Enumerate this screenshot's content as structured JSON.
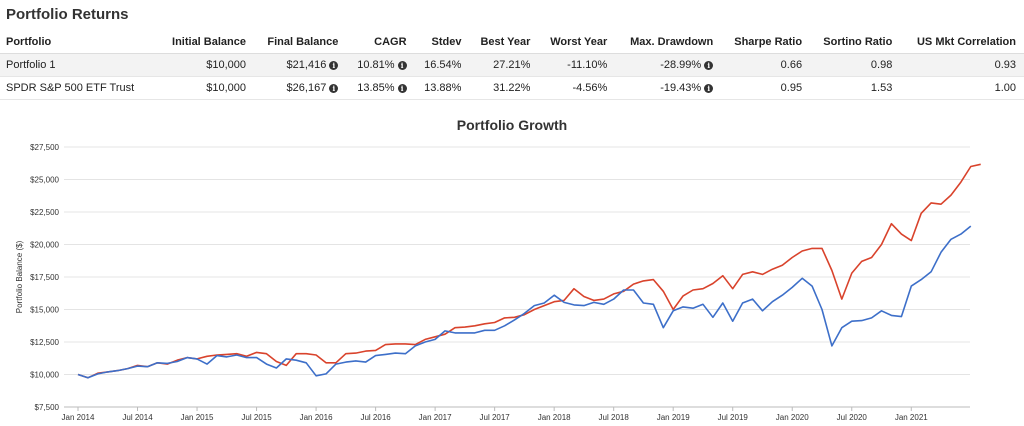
{
  "section_title": "Portfolio Returns",
  "table": {
    "headers": [
      "Portfolio",
      "Initial Balance",
      "Final Balance",
      "CAGR",
      "Stdev",
      "Best Year",
      "Worst Year",
      "Max. Drawdown",
      "Sharpe Ratio",
      "Sortino Ratio",
      "US Mkt Correlation"
    ],
    "rows": [
      {
        "portfolio": "Portfolio 1",
        "initial": "$10,000",
        "final": "$21,416",
        "cagr": "10.81%",
        "stdev": "16.54%",
        "best": "27.21%",
        "worst": "-11.10%",
        "drawdown": "-28.99%",
        "sharpe": "0.66",
        "sortino": "0.98",
        "corr": "0.93"
      },
      {
        "portfolio": "SPDR S&P 500 ETF Trust",
        "initial": "$10,000",
        "final": "$26,167",
        "cagr": "13.85%",
        "stdev": "13.88%",
        "best": "31.22%",
        "worst": "-4.56%",
        "drawdown": "-19.43%",
        "sharpe": "0.95",
        "sortino": "1.53",
        "corr": "1.00"
      }
    ],
    "info_icon": "info-circle-icon"
  },
  "chart_data": {
    "type": "line",
    "title": "Portfolio Growth",
    "xlabel": "",
    "ylabel": "Portfolio Balance ($)",
    "ylim": [
      7500,
      27500
    ],
    "yticks": [
      "$7,500",
      "$10,000",
      "$12,500",
      "$15,000",
      "$17,500",
      "$20,000",
      "$22,500",
      "$25,000",
      "$27,500"
    ],
    "xticks": [
      "Jan 2014",
      "Jul 2014",
      "Jan 2015",
      "Jul 2015",
      "Jan 2016",
      "Jul 2016",
      "Jan 2017",
      "Jul 2017",
      "Jan 2018",
      "Jul 2018",
      "Jan 2019",
      "Jul 2019",
      "Jan 2020",
      "Jul 2020",
      "Jan 2021"
    ],
    "x_start": "Jan 2014",
    "x_end": "Apr 2021",
    "grid": true,
    "series": [
      {
        "color": "#d9432c",
        "values": [
          10000,
          9750,
          10100,
          10200,
          10300,
          10450,
          10700,
          10600,
          10900,
          10800,
          11100,
          11300,
          11200,
          11400,
          11500,
          11550,
          11600,
          11400,
          11700,
          11600,
          11000,
          10700,
          11600,
          11600,
          11500,
          10900,
          10900,
          11600,
          11650,
          11800,
          11850,
          12300,
          12350,
          12350,
          12300,
          12700,
          12900,
          13100,
          13600,
          13650,
          13750,
          13900,
          14000,
          14350,
          14400,
          14600,
          15000,
          15300,
          15600,
          15700,
          16600,
          16000,
          15700,
          15800,
          16200,
          16400,
          16950,
          17200,
          17300,
          16400,
          15000,
          16050,
          16500,
          16600,
          17000,
          17600,
          16600,
          17700,
          17900,
          17700,
          18100,
          18400,
          19000,
          19500,
          19700,
          19700,
          18000,
          15800,
          17800,
          18700,
          19000,
          20000,
          21600,
          20800,
          20300,
          22400,
          23200,
          23100,
          23800,
          24800,
          26000,
          26167
        ]
      },
      {
        "color": "#3d6fc9",
        "values": [
          10000,
          9750,
          10050,
          10200,
          10300,
          10450,
          10650,
          10600,
          10900,
          10850,
          11000,
          11300,
          11200,
          10800,
          11450,
          11350,
          11500,
          11300,
          11300,
          10800,
          10500,
          11200,
          11100,
          10900,
          9900,
          10050,
          10800,
          10950,
          11050,
          10950,
          11450,
          11550,
          11650,
          11600,
          12200,
          12500,
          12700,
          13350,
          13200,
          13200,
          13200,
          13400,
          13400,
          13750,
          14200,
          14700,
          15300,
          15500,
          16100,
          15550,
          15350,
          15300,
          15550,
          15400,
          15800,
          16500,
          16500,
          15500,
          15400,
          13600,
          14900,
          15200,
          15100,
          15400,
          14400,
          15500,
          14100,
          15500,
          15800,
          14900,
          15600,
          16100,
          16700,
          17400,
          16800,
          15000,
          12200,
          13600,
          14100,
          14150,
          14350,
          14900,
          14550,
          14450,
          16800,
          17300,
          17900,
          19400,
          20400,
          20800,
          21416
        ]
      }
    ]
  }
}
